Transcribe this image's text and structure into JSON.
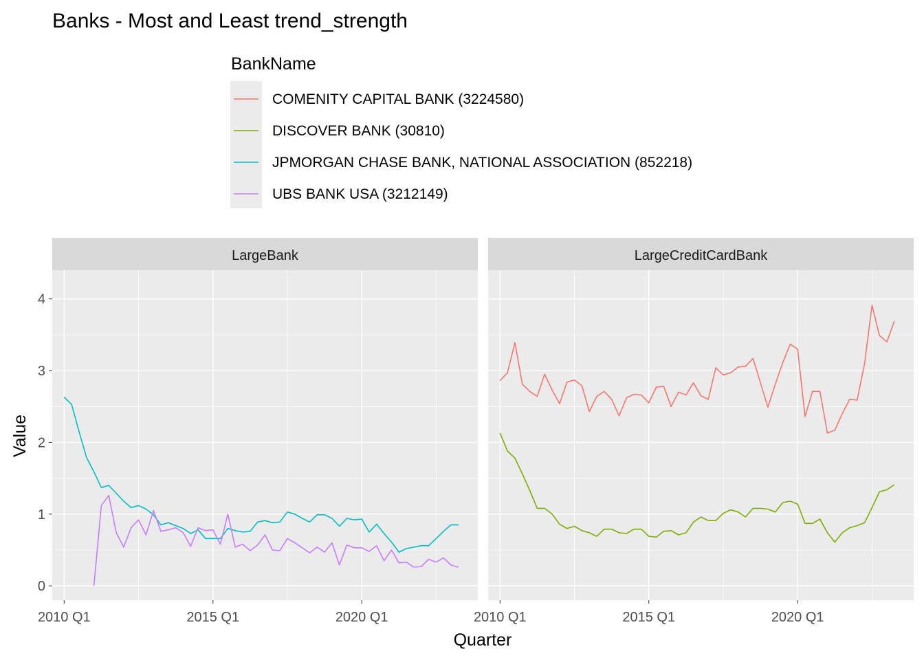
{
  "chart_data": {
    "type": "line",
    "title": "Banks - Most and Least trend_strength",
    "xlabel": "Quarter",
    "ylabel": "Value",
    "ylim": [
      -0.2,
      4.4
    ],
    "y_ticks": [
      0,
      1,
      2,
      3,
      4
    ],
    "x_range": [
      2009.6,
      2023.9
    ],
    "x_ticks": [
      {
        "value": 2010,
        "label": "2010 Q1"
      },
      {
        "value": 2015,
        "label": "2015 Q1"
      },
      {
        "value": 2020,
        "label": "2020 Q1"
      }
    ],
    "legend": {
      "title": "BankName",
      "placement": "top",
      "items": [
        {
          "name": "COMENITY CAPITAL BANK (3224580)",
          "color": "#F8766D"
        },
        {
          "name": "DISCOVER BANK (30810)",
          "color": "#7CAE00"
        },
        {
          "name": "JPMORGAN CHASE BANK, NATIONAL ASSOCIATION (852218)",
          "color": "#00BFC4"
        },
        {
          "name": "UBS BANK USA (3212149)",
          "color": "#C77CFF"
        }
      ]
    },
    "grid": true,
    "panels": [
      {
        "label": "LargeBank",
        "series": [
          {
            "name": "JPMORGAN CHASE BANK, NATIONAL ASSOCIATION (852218)",
            "color": "#00BFC4",
            "x_start": 2010,
            "step": 0.25,
            "values": [
              2.63,
              2.53,
              2.15,
              1.79,
              1.59,
              1.37,
              1.4,
              1.29,
              1.18,
              1.09,
              1.12,
              1.07,
              0.99,
              0.85,
              0.88,
              0.84,
              0.8,
              0.73,
              0.78,
              0.66,
              0.66,
              0.66,
              0.8,
              0.77,
              0.75,
              0.76,
              0.89,
              0.91,
              0.88,
              0.89,
              1.03,
              1.0,
              0.94,
              0.89,
              0.99,
              0.99,
              0.94,
              0.83,
              0.94,
              0.92,
              0.93,
              0.75,
              0.86,
              0.73,
              0.61,
              0.47,
              0.52,
              0.54,
              0.56,
              0.56,
              0.66,
              0.76,
              0.85,
              0.85
            ]
          },
          {
            "name": "UBS BANK USA (3212149)",
            "color": "#C77CFF",
            "x_start": 2011,
            "step": 0.25,
            "values": [
              0.0,
              1.12,
              1.26,
              0.74,
              0.54,
              0.81,
              0.92,
              0.71,
              1.05,
              0.76,
              0.78,
              0.81,
              0.74,
              0.55,
              0.81,
              0.77,
              0.78,
              0.58,
              1.0,
              0.54,
              0.58,
              0.49,
              0.57,
              0.71,
              0.5,
              0.49,
              0.66,
              0.6,
              0.53,
              0.46,
              0.54,
              0.47,
              0.6,
              0.29,
              0.57,
              0.53,
              0.53,
              0.48,
              0.56,
              0.35,
              0.5,
              0.32,
              0.33,
              0.26,
              0.27,
              0.37,
              0.33,
              0.39,
              0.29,
              0.26
            ]
          }
        ]
      },
      {
        "label": "LargeCreditCardBank",
        "series": [
          {
            "name": "COMENITY CAPITAL BANK (3224580)",
            "color": "#F8766D",
            "x_start": 2010,
            "step": 0.25,
            "values": [
              2.86,
              2.97,
              3.39,
              2.81,
              2.71,
              2.64,
              2.95,
              2.73,
              2.54,
              2.84,
              2.87,
              2.79,
              2.43,
              2.64,
              2.71,
              2.6,
              2.37,
              2.62,
              2.67,
              2.66,
              2.55,
              2.77,
              2.78,
              2.5,
              2.7,
              2.66,
              2.83,
              2.65,
              2.6,
              3.04,
              2.94,
              2.97,
              3.05,
              3.06,
              3.17,
              2.83,
              2.49,
              2.81,
              3.11,
              3.37,
              3.3,
              2.36,
              2.71,
              2.71,
              2.13,
              2.17,
              2.4,
              2.6,
              2.59,
              3.1,
              3.91,
              3.49,
              3.4,
              3.69
            ]
          },
          {
            "name": "DISCOVER BANK (30810)",
            "color": "#7CAE00",
            "x_start": 2010,
            "step": 0.25,
            "values": [
              2.13,
              1.88,
              1.78,
              1.56,
              1.33,
              1.08,
              1.08,
              1.0,
              0.86,
              0.8,
              0.83,
              0.77,
              0.74,
              0.69,
              0.79,
              0.79,
              0.74,
              0.73,
              0.79,
              0.79,
              0.69,
              0.68,
              0.76,
              0.77,
              0.71,
              0.74,
              0.89,
              0.96,
              0.91,
              0.91,
              1.01,
              1.06,
              1.03,
              0.96,
              1.08,
              1.08,
              1.07,
              1.03,
              1.16,
              1.18,
              1.14,
              0.87,
              0.87,
              0.93,
              0.74,
              0.61,
              0.74,
              0.81,
              0.84,
              0.88,
              1.09,
              1.31,
              1.34,
              1.41
            ]
          }
        ]
      }
    ]
  }
}
